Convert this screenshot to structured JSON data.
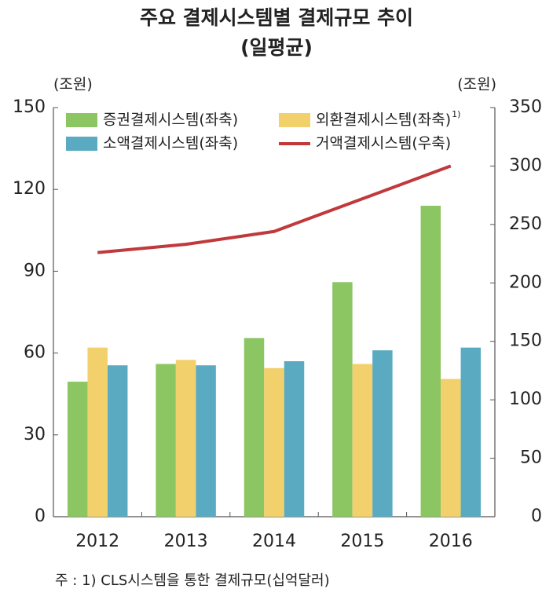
{
  "chart_data": {
    "type": "bar",
    "title": "주요 결제시스템별 결제규모 추이",
    "subtitle": "(일평균)",
    "y_label": "(조원)",
    "y2_label": "(조원)",
    "categories": [
      "2012",
      "2013",
      "2014",
      "2015",
      "2016"
    ],
    "series": [
      {
        "name": "증권결제시스템(좌축)",
        "color": "#8cc663",
        "values": [
          49.5,
          56,
          65.5,
          86,
          114
        ]
      },
      {
        "name": "외환결제시스템(좌축)",
        "note_marker": "1)",
        "color": "#f2d06b",
        "values": [
          62,
          57.5,
          54.5,
          56,
          50.5
        ]
      },
      {
        "name": "소액결제시스템(좌축)",
        "color": "#5aabc2",
        "values": [
          55.5,
          55.5,
          57,
          61,
          62
        ]
      },
      {
        "name": "거액결제시스템(우축)",
        "color": "#c0393b",
        "axis": "y2",
        "values": [
          226,
          233,
          244,
          272,
          300
        ]
      }
    ],
    "ylim": [
      0,
      150
    ],
    "yticks": [
      0,
      30,
      60,
      90,
      120,
      150
    ],
    "y2lim": [
      0,
      350
    ],
    "y2ticks": [
      0,
      50,
      100,
      150,
      200,
      250,
      300,
      350
    ],
    "note": "주 : 1) CLS시스템을 통한 결제규모(십억달러)"
  }
}
